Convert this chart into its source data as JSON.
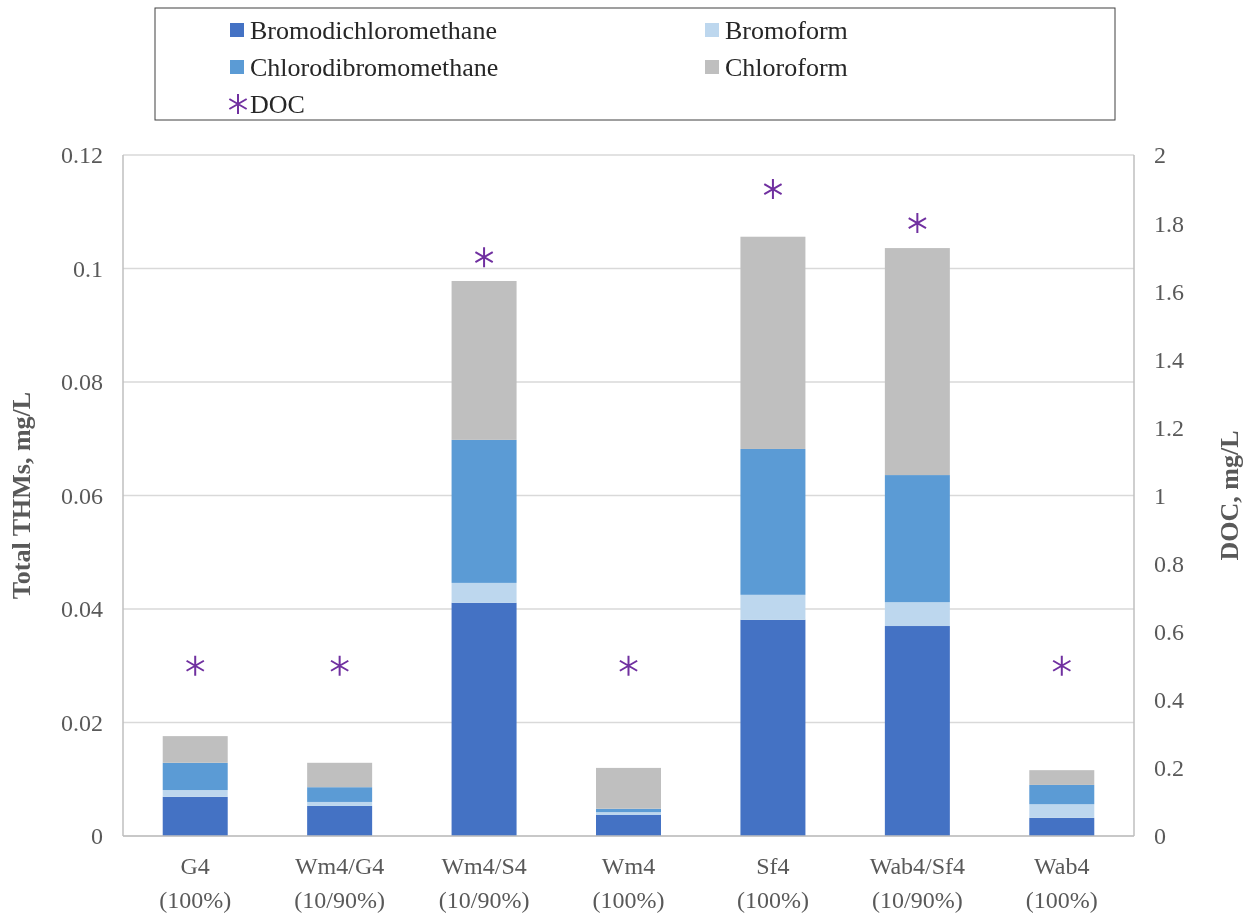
{
  "chart_data": {
    "type": "bar",
    "stacked": true,
    "ylabel": "Total THMs, mg/L",
    "y2label": "DOC, mg/L",
    "categories": [
      "G4 (100%)",
      "Wm4/G4 (10/90%)",
      "Wm4/S4 (10/90%)",
      "Wm4 (100%)",
      "Sf4 (100%)",
      "Wab4/Sf4 (10/90%)",
      "Wab4 (100%)"
    ],
    "series": [
      {
        "name": "Bromodichloromethane",
        "color": "#4472c4",
        "values": [
          0.0069,
          0.0053,
          0.0411,
          0.0037,
          0.0381,
          0.037,
          0.0032
        ]
      },
      {
        "name": "Bromoform",
        "color": "#bdd7ee",
        "values": [
          0.0012,
          0.0007,
          0.0035,
          0.0005,
          0.0044,
          0.0042,
          0.0024
        ]
      },
      {
        "name": "Chlorodibromomethane",
        "color": "#5b9bd5",
        "values": [
          0.0048,
          0.0026,
          0.0252,
          0.0006,
          0.0257,
          0.0224,
          0.0034
        ]
      },
      {
        "name": "Chloroform",
        "color": "#bfbfbf",
        "values": [
          0.0047,
          0.0043,
          0.028,
          0.0072,
          0.0374,
          0.04,
          0.0026
        ]
      },
      {
        "name": "DOC",
        "type": "scatter",
        "axis": "y2",
        "marker": "cross",
        "color": "#7030a0",
        "values": [
          0.5,
          0.5,
          1.7,
          0.5,
          1.9,
          1.8,
          0.5
        ]
      }
    ],
    "ylim": [
      0,
      0.12
    ],
    "yticks": [
      0,
      0.02,
      0.04,
      0.06,
      0.08,
      0.1,
      0.12
    ],
    "y2lim": [
      0,
      2
    ],
    "y2ticks": [
      0,
      0.2,
      0.4,
      0.6,
      0.8,
      1,
      1.2,
      1.4,
      1.6,
      1.8,
      2
    ],
    "grid": "y",
    "legend": "top"
  }
}
